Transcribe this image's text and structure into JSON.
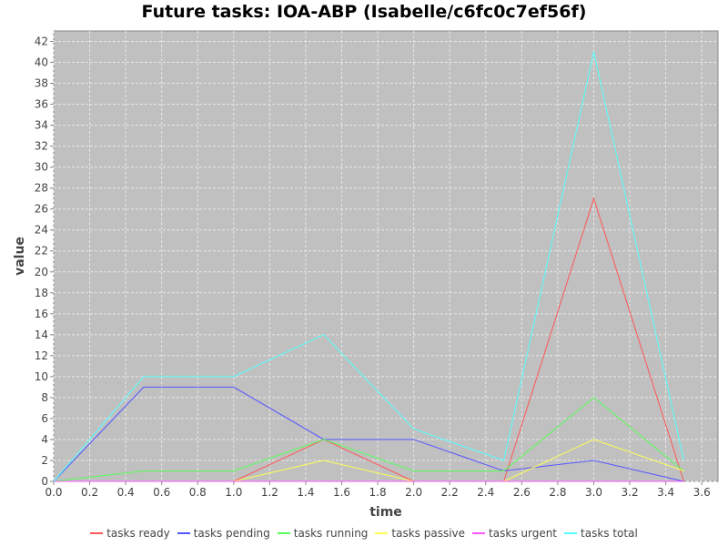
{
  "chart_data": {
    "type": "line",
    "title": "Future tasks: IOA-ABP (Isabelle/c6fc0c7ef56f)",
    "xlabel": "time",
    "ylabel": "value",
    "xlim": [
      0,
      3.69
    ],
    "ylim": [
      0,
      43
    ],
    "xticks": [
      "0.0",
      "0.2",
      "0.4",
      "0.6",
      "0.8",
      "1.0",
      "1.2",
      "1.4",
      "1.6",
      "1.8",
      "2.0",
      "2.2",
      "2.4",
      "2.6",
      "2.8",
      "3.0",
      "3.2",
      "3.4",
      "3.6"
    ],
    "yticks": [
      "0",
      "2",
      "4",
      "6",
      "8",
      "10",
      "12",
      "14",
      "16",
      "18",
      "20",
      "22",
      "24",
      "26",
      "28",
      "30",
      "32",
      "34",
      "36",
      "38",
      "40",
      "42"
    ],
    "grid": true,
    "legend_position": "bottom",
    "x": [
      0,
      0.5,
      1.0,
      1.5,
      2.0,
      2.5,
      3.0,
      3.5
    ],
    "series": [
      {
        "name": "tasks ready",
        "color": "#ff5555",
        "values": [
          0,
          0,
          0,
          4,
          0,
          0,
          27,
          0
        ]
      },
      {
        "name": "tasks pending",
        "color": "#5555ff",
        "values": [
          0,
          9,
          9,
          4,
          4,
          1,
          2,
          0
        ]
      },
      {
        "name": "tasks running",
        "color": "#55ff55",
        "values": [
          0,
          1,
          1,
          4,
          1,
          1,
          8,
          1
        ]
      },
      {
        "name": "tasks passive",
        "color": "#ffff55",
        "values": [
          0,
          0,
          0,
          2,
          0,
          0,
          4,
          1
        ]
      },
      {
        "name": "tasks urgent",
        "color": "#ff55ff",
        "values": [
          0,
          0,
          0,
          0,
          0,
          0,
          0,
          0
        ]
      },
      {
        "name": "tasks total",
        "color": "#55ffff",
        "values": [
          0,
          10,
          10,
          14,
          5,
          2,
          41,
          2
        ]
      }
    ]
  }
}
